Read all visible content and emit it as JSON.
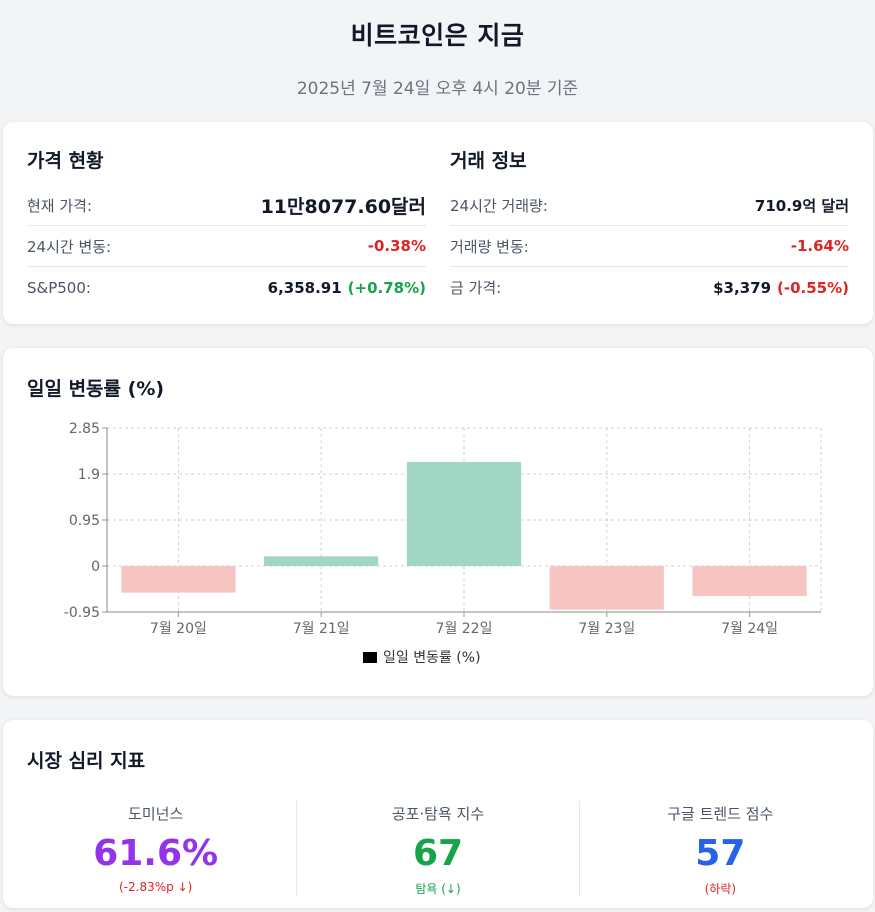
{
  "header": {
    "title": "비트코인은 지금",
    "subtitle": "2025년 7월 24일 오후 4시 20분 기준"
  },
  "price": {
    "title": "가격 현황",
    "rows": [
      {
        "label": "현재 가격:",
        "value": "11만8077.60달러"
      },
      {
        "label": "24시간 변동:",
        "value": "-0.38%"
      },
      {
        "label": "S&P500:",
        "value": "6,358.91",
        "change": "(+0.78%)"
      }
    ]
  },
  "trade": {
    "title": "거래 정보",
    "rows": [
      {
        "label": "24시간 거래량:",
        "value": "710.9억 달러"
      },
      {
        "label": "거래량 변동:",
        "value": "-1.64%"
      },
      {
        "label": "금 가격:",
        "value": "$3,379",
        "change": "(-0.55%)"
      }
    ]
  },
  "chart_section": {
    "title": "일일 변동률 (%)"
  },
  "chart_data": {
    "type": "bar",
    "categories": [
      "7월 20일",
      "7월 21일",
      "7월 22일",
      "7월 23일",
      "7월 24일"
    ],
    "series": [
      {
        "name": "일일 변동률 (%)",
        "values": [
          -0.55,
          0.2,
          2.15,
          -0.9,
          -0.62
        ]
      }
    ],
    "yticks": [
      "2.85",
      "1.9",
      "0.95",
      "0",
      "-0.95"
    ],
    "ylim": [
      -0.95,
      2.85
    ],
    "grid": true,
    "legend": "bottom",
    "colors": {
      "positive": "#a1d6c4",
      "negative": "#f7c5c1",
      "legend_swatch": "#000000"
    }
  },
  "sentiment": {
    "title": "시장 심리 지표",
    "metrics": [
      {
        "label": "도미넌스",
        "value": "61.6%",
        "note": "(-2.83%p ↓)",
        "color": "#9333ea",
        "note_color": "#dc2626"
      },
      {
        "label": "공포·탐욕 지수",
        "value": "67",
        "note": "탐욕 (↓)",
        "color": "#16a34a",
        "note_color": "#16a34a"
      },
      {
        "label": "구글 트렌드 점수",
        "value": "57",
        "note": "(하락)",
        "color": "#2563eb",
        "note_color": "#dc2626"
      }
    ]
  }
}
